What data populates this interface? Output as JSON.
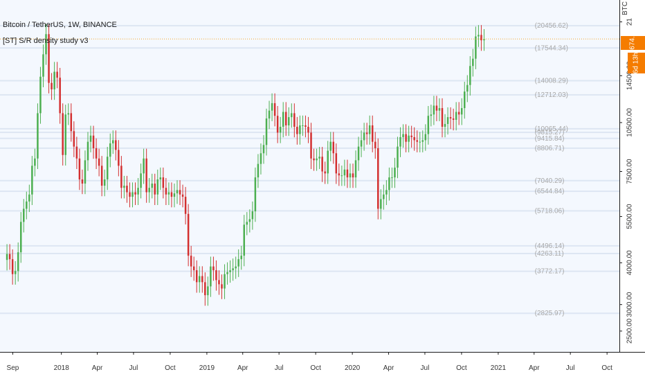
{
  "header": {
    "symbol_line": "Bitcoin / TetherUS, 1W, BINANCE",
    "study_line": "[ST] S/R density study v3",
    "currency_tag": "BTC"
  },
  "price_tags": {
    "last_price": "18674.02",
    "countdown": "6d 13h"
  },
  "colors": {
    "up": "#4caf50",
    "down": "#d32f2f",
    "background": "#f4f8fe",
    "level_line": "#dde6f3",
    "level_label": "#a8a8a8",
    "last_price_line": "#f5a623",
    "price_tag": "#f57c00"
  },
  "chart_data": {
    "type": "candlestick",
    "timeframe": "1W",
    "y_axis": {
      "scale": "log",
      "range": [
        2250,
        23500
      ],
      "ticks": [
        "2500.00",
        "3000.00",
        "4000.00",
        "5500.00",
        "7500.00",
        "10500.00",
        "14500.00",
        "21"
      ]
    },
    "x_axis": {
      "range": [
        "2017-07-31",
        "2021-11-01"
      ],
      "ticks": [
        {
          "label": "Sep",
          "date": "2017-09-01"
        },
        {
          "label": "2018",
          "date": "2018-01-01"
        },
        {
          "label": "Apr",
          "date": "2018-04-01"
        },
        {
          "label": "Jul",
          "date": "2018-07-01"
        },
        {
          "label": "Oct",
          "date": "2018-10-01"
        },
        {
          "label": "2019",
          "date": "2019-01-01"
        },
        {
          "label": "Apr",
          "date": "2019-04-01"
        },
        {
          "label": "Jul",
          "date": "2019-07-01"
        },
        {
          "label": "Oct",
          "date": "2019-10-01"
        },
        {
          "label": "2020",
          "date": "2020-01-01"
        },
        {
          "label": "Apr",
          "date": "2020-04-01"
        },
        {
          "label": "Jul",
          "date": "2020-07-01"
        },
        {
          "label": "Oct",
          "date": "2020-10-01"
        },
        {
          "label": "2021",
          "date": "2021-01-01"
        },
        {
          "label": "Apr",
          "date": "2021-04-01"
        },
        {
          "label": "Jul",
          "date": "2021-07-01"
        },
        {
          "label": "Oct",
          "date": "2021-10-01"
        }
      ]
    },
    "first_week": "2017-08-14",
    "closes": [
      4250,
      4100,
      3700,
      3780,
      4300,
      5300,
      5800,
      6100,
      6400,
      7800,
      8200,
      11200,
      14400,
      16800,
      19300,
      13800,
      13200,
      14900,
      14300,
      11200,
      8400,
      11100,
      11200,
      9900,
      8900,
      8200,
      7100,
      6900,
      8100,
      9200,
      9600,
      8800,
      8200,
      7800,
      6800,
      7100,
      8300,
      9100,
      9300,
      8700,
      7800,
      6700,
      6800,
      6500,
      6300,
      6500,
      6400,
      6700,
      7400,
      8200,
      6500,
      6700,
      6900,
      6400,
      7100,
      7200,
      6700,
      6400,
      6500,
      6300,
      6450,
      6600,
      6400,
      6300,
      5600,
      4200,
      3900,
      3800,
      3500,
      3650,
      3500,
      3200,
      3400,
      3900,
      3800,
      3550,
      3450,
      3350,
      3700,
      3750,
      3800,
      3850,
      3900,
      4100,
      4200,
      5200,
      5300,
      5400,
      5700,
      7200,
      7900,
      8500,
      9000,
      10800,
      11400,
      12000,
      11000,
      9800,
      10200,
      11300,
      10300,
      10900,
      11200,
      10200,
      9700,
      10300,
      10300,
      10200,
      9800,
      8200,
      8100,
      8200,
      8300,
      7500,
      7400,
      8650,
      9200,
      8500,
      7400,
      7300,
      7300,
      7600,
      7200,
      7400,
      7200,
      8100,
      8900,
      9300,
      9800,
      9700,
      10300,
      9200,
      8800,
      5800,
      6200,
      6400,
      6600,
      7200,
      7200,
      7700,
      8900,
      9500,
      9700,
      9200,
      9600,
      9500,
      9300,
      9200,
      9200,
      9300,
      9700,
      11000,
      11100,
      11800,
      11400,
      11600,
      10200,
      10400,
      10900,
      10800,
      10700,
      11300,
      11100,
      11600,
      13000,
      13600,
      15500,
      16300,
      19000,
      19200,
      18500,
      18674
    ]
  },
  "sr_levels": [
    {
      "value": 2825.97,
      "label": "(2825.97)"
    },
    {
      "value": 3772.17,
      "label": "(3772.17)"
    },
    {
      "value": 4263.11,
      "label": "(4263.11)"
    },
    {
      "value": 4496.14,
      "label": "(4496.14)"
    },
    {
      "value": 5718.06,
      "label": "(5718.06)"
    },
    {
      "value": 6544.84,
      "label": "(6544.84)"
    },
    {
      "value": 7040.29,
      "label": "(7040.29)"
    },
    {
      "value": 8806.71,
      "label": "(8806.71)"
    },
    {
      "value": 9415.84,
      "label": "(9415.84)"
    },
    {
      "value": 9815.27,
      "label": "(9815.27)"
    },
    {
      "value": 10065.44,
      "label": "(10065.44)"
    },
    {
      "value": 12712.03,
      "label": "(12712.03)"
    },
    {
      "value": 14008.29,
      "label": "(14008.29)"
    },
    {
      "value": 17544.34,
      "label": "(17544.34)"
    },
    {
      "value": 20456.62,
      "label": "(20456.62)"
    }
  ]
}
